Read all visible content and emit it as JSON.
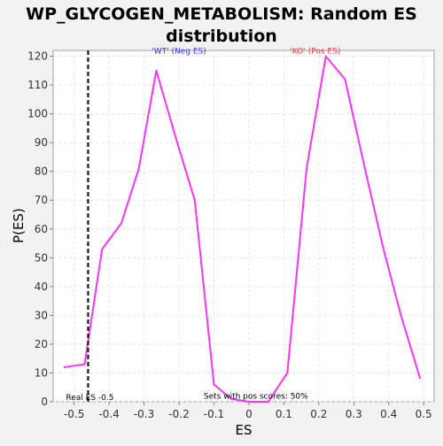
{
  "chart_data": {
    "type": "line",
    "title_lines": [
      "WP_GLYCOGEN_METABOLISM: Random ES",
      "distribution"
    ],
    "xlabel": "ES",
    "ylabel": "P(ES)",
    "xlim": [
      -0.56,
      0.53
    ],
    "ylim": [
      0,
      122
    ],
    "x_ticks": [
      -0.5,
      -0.4,
      -0.3,
      -0.2,
      -0.1,
      0.0,
      0.1,
      0.2,
      0.3,
      0.4,
      0.5
    ],
    "x_tick_labels": [
      "-0.5",
      "-0.4",
      "-0.3",
      "-0.2",
      "-0.1",
      "0",
      "0.1",
      "0.2",
      "0.3",
      "0.4",
      "0.5"
    ],
    "y_ticks": [
      0,
      10,
      20,
      30,
      40,
      50,
      60,
      70,
      80,
      90,
      100,
      110,
      120
    ],
    "y_tick_labels": [
      "0",
      "10",
      "20",
      "30",
      "40",
      "50",
      "60",
      "70",
      "80",
      "90",
      "100",
      "110",
      "120"
    ],
    "grid": true,
    "series": [
      {
        "color": "#ff33ff",
        "x": [
          -0.53,
          -0.47,
          -0.42,
          -0.365,
          -0.315,
          -0.265,
          -0.21,
          -0.155,
          -0.1,
          -0.05,
          0.0,
          0.055,
          0.11,
          0.165,
          0.22,
          0.275,
          0.33,
          0.385,
          0.435,
          0.49
        ],
        "y": [
          12,
          13,
          53,
          62,
          81,
          115,
          92,
          70,
          6,
          1,
          0,
          0,
          10,
          81,
          120,
          112,
          82,
          53,
          30,
          8
        ]
      }
    ],
    "real_es": {
      "x": -0.46,
      "label": "Real ES -0.5",
      "color": "#000000"
    },
    "annotations": [
      {
        "text": "'WT' (Neg ES)",
        "x": -0.2,
        "y": 121,
        "color": "#3333ff"
      },
      {
        "text": "'KO' (Pos ES)",
        "x": 0.19,
        "y": 121,
        "color": "#ff3333"
      },
      {
        "text": "Sets with pos scores: 50%",
        "x": 0.02,
        "y": 1,
        "color": "#000000"
      }
    ]
  }
}
